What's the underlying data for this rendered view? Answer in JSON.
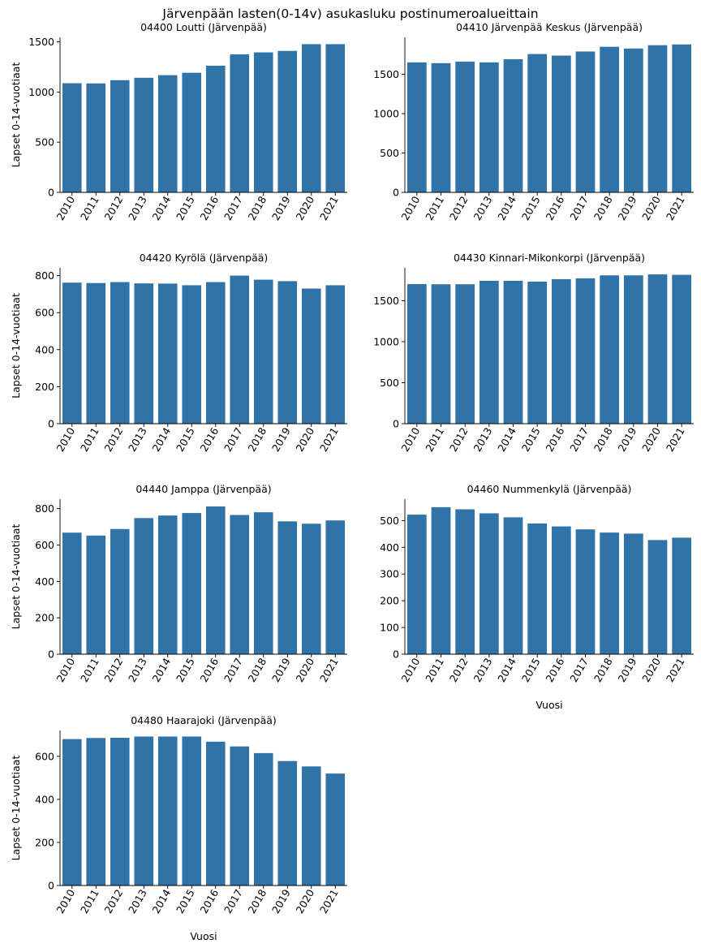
{
  "figure_title": "Järvenpään lasten(0-14v) asukasluku postinumeroalueittain",
  "chart_data": [
    {
      "type": "bar",
      "title": "04400  Loutti (Järvenpää)",
      "xlabel": "",
      "ylabel": "Lapset 0-14-vuotiaat",
      "categories": [
        "2010",
        "2011",
        "2012",
        "2013",
        "2014",
        "2015",
        "2016",
        "2017",
        "2018",
        "2019",
        "2020",
        "2021"
      ],
      "values": [
        1088,
        1086,
        1118,
        1142,
        1168,
        1192,
        1262,
        1375,
        1395,
        1410,
        1477,
        1477
      ],
      "ylim": [
        0,
        1545
      ],
      "yticks": [
        0,
        500,
        1000,
        1500
      ],
      "color": "#2f73a8"
    },
    {
      "type": "bar",
      "title": "04410  Järvenpää Keskus (Järvenpää)",
      "xlabel": "",
      "ylabel": "",
      "categories": [
        "2010",
        "2011",
        "2012",
        "2013",
        "2014",
        "2015",
        "2016",
        "2017",
        "2018",
        "2019",
        "2020",
        "2021"
      ],
      "values": [
        1652,
        1642,
        1662,
        1652,
        1692,
        1758,
        1738,
        1790,
        1850,
        1828,
        1870,
        1880
      ],
      "ylim": [
        0,
        1970
      ],
      "yticks": [
        0,
        500,
        1000,
        1500
      ],
      "color": "#2f73a8"
    },
    {
      "type": "bar",
      "title": "04420  Kyrölä (Järvenpää)",
      "xlabel": "",
      "ylabel": "Lapset 0-14-vuotiaat",
      "categories": [
        "2010",
        "2011",
        "2012",
        "2013",
        "2014",
        "2015",
        "2016",
        "2017",
        "2018",
        "2019",
        "2020",
        "2021"
      ],
      "values": [
        762,
        760,
        765,
        758,
        757,
        748,
        765,
        800,
        778,
        770,
        730,
        748
      ],
      "ylim": [
        0,
        842
      ],
      "yticks": [
        0,
        200,
        400,
        600,
        800
      ],
      "color": "#2f73a8"
    },
    {
      "type": "bar",
      "title": "04430  Kinnari-Mikonkorpi (Järvenpää)",
      "xlabel": "",
      "ylabel": "",
      "categories": [
        "2010",
        "2011",
        "2012",
        "2013",
        "2014",
        "2015",
        "2016",
        "2017",
        "2018",
        "2019",
        "2020",
        "2021"
      ],
      "values": [
        1702,
        1700,
        1700,
        1742,
        1742,
        1732,
        1762,
        1772,
        1808,
        1808,
        1820,
        1815
      ],
      "ylim": [
        0,
        1900
      ],
      "yticks": [
        0,
        500,
        1000,
        1500
      ],
      "color": "#2f73a8"
    },
    {
      "type": "bar",
      "title": "04440  Jamppa (Järvenpää)",
      "xlabel": "",
      "ylabel": "Lapset 0-14-vuotiaat",
      "categories": [
        "2010",
        "2011",
        "2012",
        "2013",
        "2014",
        "2015",
        "2016",
        "2017",
        "2018",
        "2019",
        "2020",
        "2021"
      ],
      "values": [
        668,
        652,
        688,
        748,
        762,
        776,
        812,
        765,
        780,
        730,
        717,
        735
      ],
      "ylim": [
        0,
        852
      ],
      "yticks": [
        0,
        200,
        400,
        600,
        800
      ],
      "color": "#2f73a8"
    },
    {
      "type": "bar",
      "title": "04460  Nummenkylä (Järvenpää)",
      "xlabel": "Vuosi",
      "ylabel": "",
      "categories": [
        "2010",
        "2011",
        "2012",
        "2013",
        "2014",
        "2015",
        "2016",
        "2017",
        "2018",
        "2019",
        "2020",
        "2021"
      ],
      "values": [
        522,
        550,
        542,
        527,
        512,
        489,
        478,
        467,
        455,
        451,
        427,
        436
      ],
      "ylim": [
        0,
        580
      ],
      "yticks": [
        0,
        100,
        200,
        300,
        400,
        500
      ],
      "color": "#2f73a8"
    },
    {
      "type": "bar",
      "title": "04480  Haarajoki (Järvenpää)",
      "xlabel": "Vuosi",
      "ylabel": "Lapset 0-14-vuotiaat",
      "categories": [
        "2010",
        "2011",
        "2012",
        "2013",
        "2014",
        "2015",
        "2016",
        "2017",
        "2018",
        "2019",
        "2020",
        "2021"
      ],
      "values": [
        680,
        685,
        686,
        692,
        692,
        692,
        668,
        646,
        615,
        578,
        553,
        520
      ],
      "ylim": [
        0,
        720
      ],
      "yticks": [
        0,
        200,
        400,
        600
      ],
      "color": "#2f73a8"
    }
  ]
}
